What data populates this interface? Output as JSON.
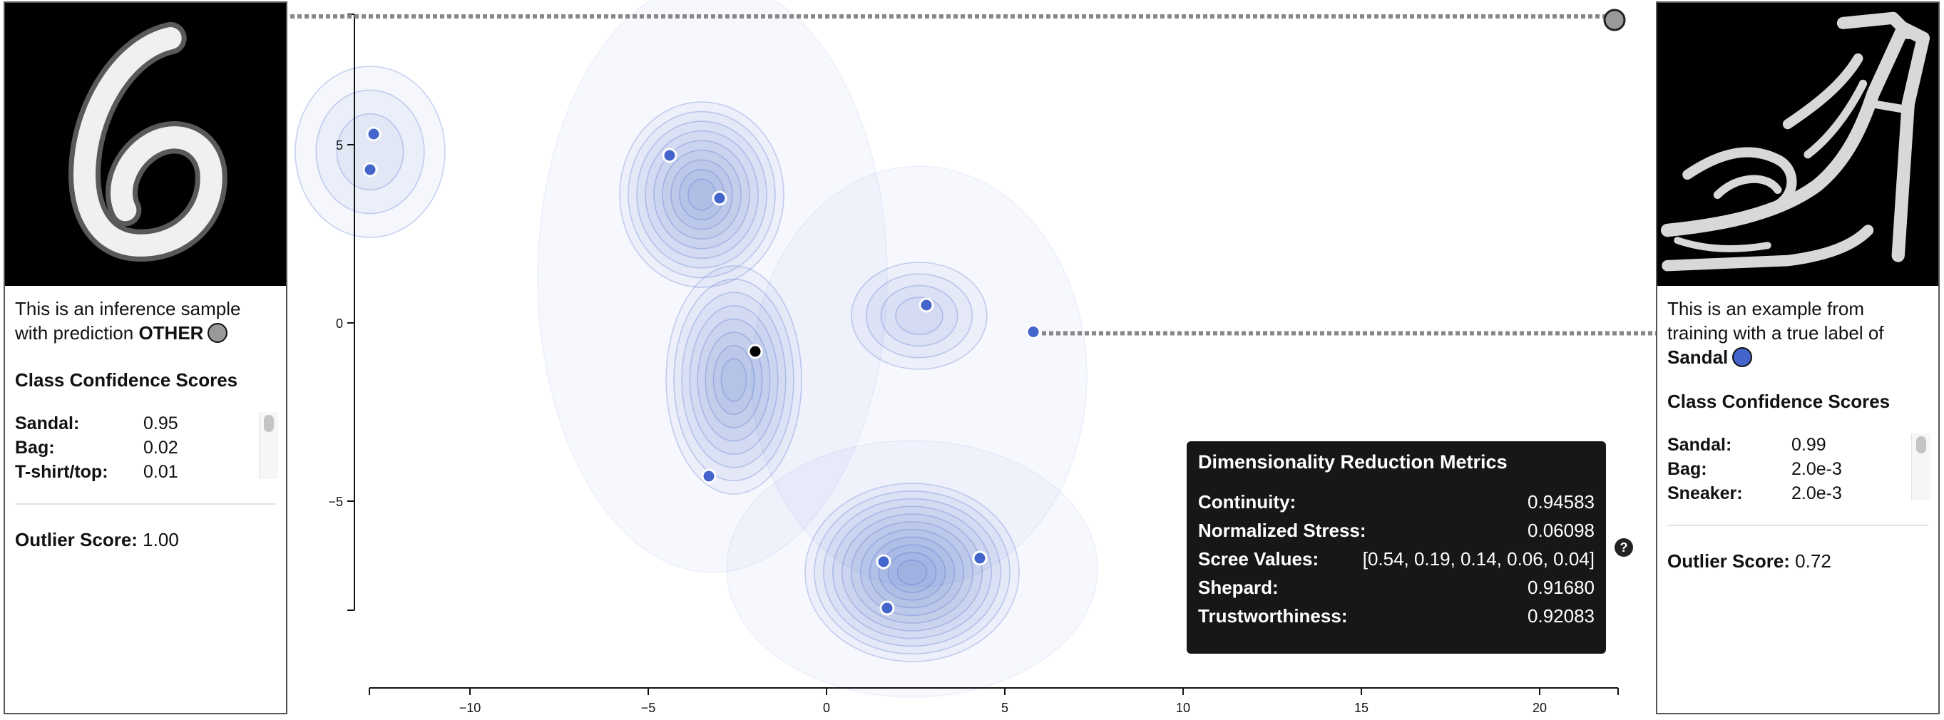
{
  "left_panel": {
    "description_line1": "This is an inference sample",
    "description_line2": "with prediction",
    "prediction": "OTHER",
    "prediction_color": "#999999",
    "scores_heading": "Class Confidence Scores",
    "scores": [
      {
        "label": "Sandal:",
        "value": "0.95"
      },
      {
        "label": "Bag:",
        "value": "0.02"
      },
      {
        "label": "T-shirt/top:",
        "value": "0.01"
      }
    ],
    "outlier_label": "Outlier Score:",
    "outlier_value": "1.00"
  },
  "right_panel": {
    "description_line1": "This is an example from",
    "description_line2": "training with a true label of",
    "true_label": "Sandal",
    "true_label_color": "#4466cc",
    "scores_heading": "Class Confidence Scores",
    "scores": [
      {
        "label": "Sandal:",
        "value": "0.99"
      },
      {
        "label": "Bag:",
        "value": "2.0e-3"
      },
      {
        "label": "Sneaker:",
        "value": "2.0e-3"
      }
    ],
    "outlier_label": "Outlier Score:",
    "outlier_value": "0.72"
  },
  "metrics": {
    "title": "Dimensionality Reduction Metrics",
    "rows": [
      {
        "label": "Continuity:",
        "value": "0.94583"
      },
      {
        "label": "Normalized Stress:",
        "value": "0.06098"
      },
      {
        "label": "Scree Values:",
        "value": "[0.54, 0.19, 0.14, 0.06, 0.04]"
      },
      {
        "label": "Shepard:",
        "value": "0.91680"
      },
      {
        "label": "Trustworthiness:",
        "value": "0.92083"
      }
    ],
    "help": "?"
  },
  "chart_data": {
    "type": "scatter",
    "title": "",
    "xlabel": "",
    "ylabel": "",
    "xlim": [
      -13,
      22
    ],
    "ylim": [
      -10,
      8.5
    ],
    "x_ticks": [
      -10,
      -5,
      0,
      5,
      10,
      15,
      20
    ],
    "y_ticks": [
      5,
      0,
      -5
    ],
    "density_color": "#4466cc",
    "point_color": "#4466cc",
    "points": [
      {
        "x": -12.7,
        "y": 5.3
      },
      {
        "x": -12.8,
        "y": 4.3
      },
      {
        "x": -4.4,
        "y": 4.7
      },
      {
        "x": -3.0,
        "y": 3.5
      },
      {
        "x": 2.8,
        "y": 0.5
      },
      {
        "x": 5.8,
        "y": -0.25
      },
      {
        "x": -2.0,
        "y": -0.8,
        "highlight": true
      },
      {
        "x": -3.3,
        "y": -4.3
      },
      {
        "x": 1.6,
        "y": -6.7
      },
      {
        "x": 4.3,
        "y": -6.6
      },
      {
        "x": 1.7,
        "y": -8.0
      }
    ],
    "density_centers": [
      {
        "x": -12.8,
        "y": 4.8,
        "level": 3
      },
      {
        "x": -3.5,
        "y": 3.6,
        "level": 9
      },
      {
        "x": -2.6,
        "y": -1.6,
        "level": 8
      },
      {
        "x": 2.6,
        "y": 0.2,
        "level": 4
      },
      {
        "x": 2.4,
        "y": -7.0,
        "level": 11
      }
    ],
    "inference_marker": {
      "x": 22.1,
      "y": 8.5,
      "color": "#999999"
    },
    "link_y_training": -0.25
  }
}
